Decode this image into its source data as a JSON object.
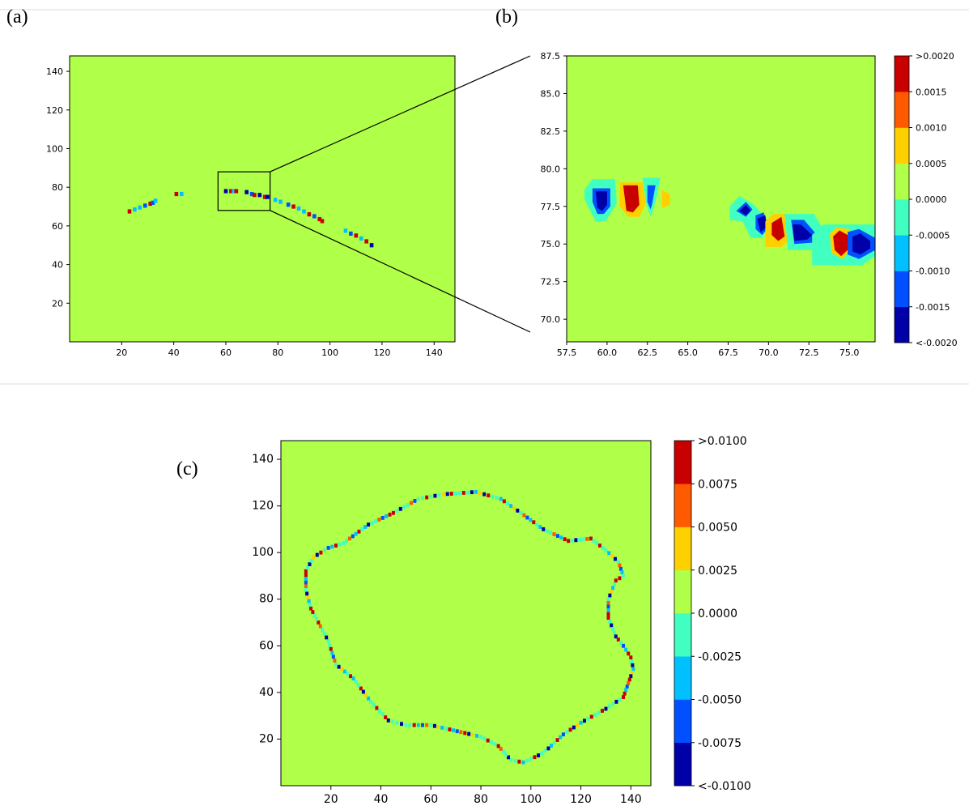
{
  "panels": {
    "a": {
      "label": "(a)"
    },
    "b": {
      "label": "(b)"
    },
    "c": {
      "label": "(c)"
    }
  },
  "chart_data": [
    {
      "id": "a",
      "type": "heatmap",
      "xlim": [
        0,
        148
      ],
      "ylim": [
        0,
        148
      ],
      "xticks": [
        20,
        40,
        60,
        80,
        100,
        120,
        140
      ],
      "yticks": [
        20,
        40,
        60,
        80,
        100,
        120,
        140
      ],
      "background_value": 0.0002,
      "zoom_box": {
        "x": [
          57,
          77
        ],
        "y": [
          68,
          88
        ]
      },
      "cells": [
        [
          23,
          67.5,
          0.003
        ],
        [
          25,
          68.5,
          -0.001
        ],
        [
          27,
          69.5,
          -0.0008
        ],
        [
          29,
          70.5,
          -0.0012
        ],
        [
          31,
          71.5,
          0.003
        ],
        [
          32,
          72,
          -0.0015
        ],
        [
          33,
          73,
          -0.0008
        ],
        [
          41,
          76.5,
          0.002
        ],
        [
          43,
          76.5,
          -0.001
        ],
        [
          60,
          78,
          -0.002
        ],
        [
          62,
          78,
          0.003
        ],
        [
          63,
          78,
          -0.001
        ],
        [
          64,
          78,
          0.0015
        ],
        [
          68,
          77.5,
          -0.002
        ],
        [
          70,
          76.5,
          -0.0012
        ],
        [
          71,
          76,
          0.003
        ],
        [
          73,
          76,
          -0.002
        ],
        [
          75,
          75,
          0.003
        ],
        [
          76,
          75,
          -0.002
        ],
        [
          79,
          73.5,
          -0.0008
        ],
        [
          81,
          72.5,
          -0.001
        ],
        [
          84,
          71,
          -0.0015
        ],
        [
          86,
          70,
          0.003
        ],
        [
          88,
          69,
          -0.0008
        ],
        [
          90,
          67.5,
          -0.001
        ],
        [
          92,
          66,
          0.003
        ],
        [
          94,
          65,
          -0.0015
        ],
        [
          96,
          63.5,
          0.0015
        ],
        [
          97,
          62.5,
          0.003
        ],
        [
          106,
          57.5,
          -0.001
        ],
        [
          108,
          56,
          -0.0015
        ],
        [
          110,
          55,
          0.003
        ],
        [
          112,
          53.5,
          -0.0008
        ],
        [
          114,
          52,
          0.003
        ],
        [
          116,
          50,
          -0.002
        ]
      ]
    },
    {
      "id": "b",
      "type": "heatmap",
      "xlim": [
        57.5,
        76.6
      ],
      "ylim": [
        68.5,
        87.5
      ],
      "xticks": [
        57.5,
        60.0,
        62.5,
        65.0,
        67.5,
        70.0,
        72.5,
        75.0
      ],
      "yticks": [
        70.0,
        72.5,
        75.0,
        77.5,
        80.0,
        82.5,
        85.0,
        87.5
      ],
      "xtick_labels": [
        "57.5",
        "60.0",
        "62.5",
        "65.0",
        "67.5",
        "70.0",
        "72.5",
        "75.0"
      ],
      "ytick_labels": [
        "70.0",
        "72.5",
        "75.0",
        "77.5",
        "80.0",
        "82.5",
        "85.0",
        "87.5"
      ],
      "background_value": 0.0002,
      "colorbar": {
        "levels": [
          -0.002,
          -0.0015,
          -0.001,
          -0.0005,
          0.0,
          0.0005,
          0.001,
          0.0015,
          0.002
        ],
        "labels": [
          "<-0.0020",
          "-0.0015",
          "-0.0010",
          "-0.0005",
          "0.0000",
          "0.0005",
          "0.0010",
          "0.0015",
          ">0.0020"
        ]
      },
      "blobs": [
        {
          "pts": [
            [
              58.6,
              78.6
            ],
            [
              59.1,
              79.3
            ],
            [
              60.5,
              79.3
            ],
            [
              60.6,
              77.7
            ],
            [
              59.9,
              76.5
            ],
            [
              59.3,
              76.5
            ],
            [
              58.6,
              78.0
            ]
          ],
          "v": -0.0003
        },
        {
          "pts": [
            [
              59.1,
              78.7
            ],
            [
              60.2,
              78.7
            ],
            [
              60.2,
              77.5
            ],
            [
              59.8,
              77.0
            ],
            [
              59.4,
              77.0
            ],
            [
              59.1,
              77.8
            ]
          ],
          "v": -0.0012
        },
        {
          "pts": [
            [
              59.3,
              78.5
            ],
            [
              60.0,
              78.5
            ],
            [
              60.0,
              77.6
            ],
            [
              59.7,
              77.2
            ],
            [
              59.4,
              77.4
            ]
          ],
          "v": -0.0022
        },
        {
          "pts": [
            [
              60.8,
              79.1
            ],
            [
              62.2,
              79.1
            ],
            [
              62.4,
              77.7
            ],
            [
              62.0,
              76.8
            ],
            [
              61.3,
              76.8
            ],
            [
              60.8,
              77.5
            ]
          ],
          "v": 0.0007
        },
        {
          "pts": [
            [
              61.0,
              78.9
            ],
            [
              61.9,
              78.9
            ],
            [
              62.0,
              77.6
            ],
            [
              61.6,
              77.1
            ],
            [
              61.2,
              77.2
            ]
          ],
          "v": 0.0016
        },
        {
          "pts": [
            [
              61.2,
              78.6
            ],
            [
              61.8,
              78.6
            ],
            [
              61.8,
              77.6
            ],
            [
              61.5,
              77.4
            ],
            [
              61.2,
              77.6
            ]
          ],
          "v": 0.0025
        },
        {
          "pts": [
            [
              62.2,
              79.4
            ],
            [
              63.3,
              79.4
            ],
            [
              63.0,
              77.8
            ],
            [
              62.7,
              76.8
            ],
            [
              62.4,
              77.8
            ]
          ],
          "v": -0.0003
        },
        {
          "pts": [
            [
              62.5,
              78.9
            ],
            [
              63.0,
              78.9
            ],
            [
              62.8,
              77.7
            ],
            [
              62.7,
              77.3
            ],
            [
              62.5,
              77.8
            ]
          ],
          "v": -0.0012
        },
        {
          "pts": [
            [
              63.4,
              78.6
            ],
            [
              63.9,
              78.3
            ],
            [
              63.9,
              77.6
            ],
            [
              63.4,
              77.4
            ]
          ],
          "v": 0.0007
        },
        {
          "pts": [
            [
              67.6,
              77.5
            ],
            [
              68.2,
              78.2
            ],
            [
              69.1,
              77.6
            ],
            [
              69.6,
              77.0
            ],
            [
              70.0,
              76.1
            ],
            [
              69.6,
              75.4
            ],
            [
              68.9,
              75.4
            ],
            [
              68.4,
              76.5
            ],
            [
              67.6,
              76.6
            ]
          ],
          "v": -0.0003
        },
        {
          "pts": [
            [
              68.0,
              77.2
            ],
            [
              68.6,
              77.8
            ],
            [
              69.0,
              77.3
            ],
            [
              68.6,
              76.8
            ]
          ],
          "v": -0.0012
        },
        {
          "pts": [
            [
              68.2,
              77.2
            ],
            [
              68.6,
              77.6
            ],
            [
              68.9,
              77.2
            ],
            [
              68.6,
              76.9
            ]
          ],
          "v": -0.0022
        },
        {
          "pts": [
            [
              69.2,
              76.9
            ],
            [
              69.7,
              77.1
            ],
            [
              70.0,
              76.1
            ],
            [
              69.6,
              75.6
            ],
            [
              69.2,
              76.0
            ]
          ],
          "v": -0.0012
        },
        {
          "pts": [
            [
              69.3,
              76.7
            ],
            [
              69.8,
              76.9
            ],
            [
              69.9,
              76.1
            ],
            [
              69.5,
              75.8
            ]
          ],
          "v": -0.0022
        },
        {
          "pts": [
            [
              69.8,
              76.5
            ],
            [
              70.3,
              77.0
            ],
            [
              71.1,
              77.0
            ],
            [
              71.3,
              75.3
            ],
            [
              70.8,
              74.8
            ],
            [
              69.8,
              74.8
            ]
          ],
          "v": 0.0007
        },
        {
          "pts": [
            [
              70.2,
              76.4
            ],
            [
              70.8,
              76.8
            ],
            [
              71.0,
              75.5
            ],
            [
              70.6,
              75.2
            ],
            [
              70.2,
              75.6
            ]
          ],
          "v": 0.0016
        },
        {
          "pts": [
            [
              70.3,
              76.2
            ],
            [
              70.8,
              76.5
            ],
            [
              70.9,
              75.7
            ],
            [
              70.5,
              75.4
            ]
          ],
          "v": 0.0025
        },
        {
          "pts": [
            [
              71.0,
              77.0
            ],
            [
              72.8,
              77.0
            ],
            [
              73.5,
              75.8
            ],
            [
              73.5,
              75.2
            ],
            [
              72.6,
              74.6
            ],
            [
              71.2,
              74.6
            ]
          ],
          "v": -0.0003
        },
        {
          "pts": [
            [
              71.4,
              76.6
            ],
            [
              72.2,
              76.6
            ],
            [
              73.0,
              75.6
            ],
            [
              72.8,
              75.1
            ],
            [
              71.6,
              75.0
            ]
          ],
          "v": -0.0012
        },
        {
          "pts": [
            [
              71.5,
              76.3
            ],
            [
              72.0,
              76.3
            ],
            [
              72.7,
              75.6
            ],
            [
              72.4,
              75.3
            ],
            [
              71.6,
              75.2
            ]
          ],
          "v": -0.0022
        },
        {
          "pts": [
            [
              72.7,
              75.6
            ],
            [
              73.4,
              76.3
            ],
            [
              76.6,
              76.3
            ],
            [
              76.6,
              74.2
            ],
            [
              75.8,
              73.6
            ],
            [
              72.7,
              73.6
            ]
          ],
          "v": -0.0003
        },
        {
          "pts": [
            [
              73.8,
              75.7
            ],
            [
              74.2,
              76.1
            ],
            [
              75.0,
              76.0
            ],
            [
              75.2,
              74.8
            ],
            [
              74.6,
              74.0
            ],
            [
              73.9,
              74.4
            ]
          ],
          "v": 0.0007
        },
        {
          "pts": [
            [
              74.0,
              75.5
            ],
            [
              74.4,
              75.9
            ],
            [
              74.9,
              75.6
            ],
            [
              75.0,
              74.7
            ],
            [
              74.5,
              74.2
            ],
            [
              74.1,
              74.6
            ]
          ],
          "v": 0.0016
        },
        {
          "pts": [
            [
              74.2,
              75.3
            ],
            [
              74.5,
              75.7
            ],
            [
              74.8,
              75.3
            ],
            [
              74.8,
              74.7
            ],
            [
              74.5,
              74.3
            ],
            [
              74.2,
              74.7
            ]
          ],
          "v": 0.0025
        },
        {
          "pts": [
            [
              74.9,
              75.8
            ],
            [
              75.6,
              76.0
            ],
            [
              76.6,
              75.4
            ],
            [
              76.6,
              74.6
            ],
            [
              75.6,
              74.0
            ],
            [
              74.9,
              74.3
            ]
          ],
          "v": -0.0012
        },
        {
          "pts": [
            [
              75.2,
              75.5
            ],
            [
              75.7,
              75.7
            ],
            [
              76.3,
              75.2
            ],
            [
              76.3,
              74.7
            ],
            [
              75.7,
              74.3
            ],
            [
              75.2,
              74.5
            ]
          ],
          "v": -0.0022
        }
      ]
    },
    {
      "id": "c",
      "type": "heatmap",
      "xlim": [
        0,
        148
      ],
      "ylim": [
        0,
        148
      ],
      "xticks": [
        20,
        40,
        60,
        80,
        100,
        120,
        140
      ],
      "yticks": [
        20,
        40,
        60,
        80,
        100,
        120,
        140
      ],
      "background_value": 0.001,
      "colorbar": {
        "levels": [
          -0.01,
          -0.0075,
          -0.005,
          -0.0025,
          0.0,
          0.0025,
          0.005,
          0.0075,
          0.01
        ],
        "labels": [
          "<-0.0100",
          "-0.0075",
          "-0.0050",
          "-0.0025",
          "0.0000",
          "0.0025",
          "0.0050",
          "0.0075",
          ">0.0100"
        ]
      },
      "contour": [
        [
          25,
          104
        ],
        [
          35,
          112
        ],
        [
          45,
          117
        ],
        [
          55,
          123
        ],
        [
          65,
          125
        ],
        [
          78,
          126
        ],
        [
          88,
          123
        ],
        [
          96,
          117
        ],
        [
          105,
          110
        ],
        [
          115,
          105
        ],
        [
          124,
          106
        ],
        [
          130,
          101
        ],
        [
          135,
          96
        ],
        [
          137,
          90
        ],
        [
          134,
          88
        ],
        [
          131,
          80
        ],
        [
          131,
          72
        ],
        [
          134,
          64
        ],
        [
          137,
          60
        ],
        [
          140,
          55
        ],
        [
          141,
          50
        ],
        [
          139,
          44
        ],
        [
          137,
          38
        ],
        [
          130,
          33
        ],
        [
          120,
          27
        ],
        [
          113,
          22
        ],
        [
          107,
          16
        ],
        [
          103,
          13
        ],
        [
          97,
          10
        ],
        [
          92,
          11
        ],
        [
          87,
          17
        ],
        [
          80,
          21
        ],
        [
          72,
          23
        ],
        [
          60,
          26
        ],
        [
          50,
          26
        ],
        [
          43,
          28
        ],
        [
          36,
          36
        ],
        [
          29,
          46
        ],
        [
          22,
          52
        ],
        [
          19,
          62
        ],
        [
          15,
          70
        ],
        [
          12,
          76
        ],
        [
          10,
          84
        ],
        [
          10,
          92
        ],
        [
          13,
          98
        ],
        [
          19,
          102
        ]
      ]
    }
  ]
}
